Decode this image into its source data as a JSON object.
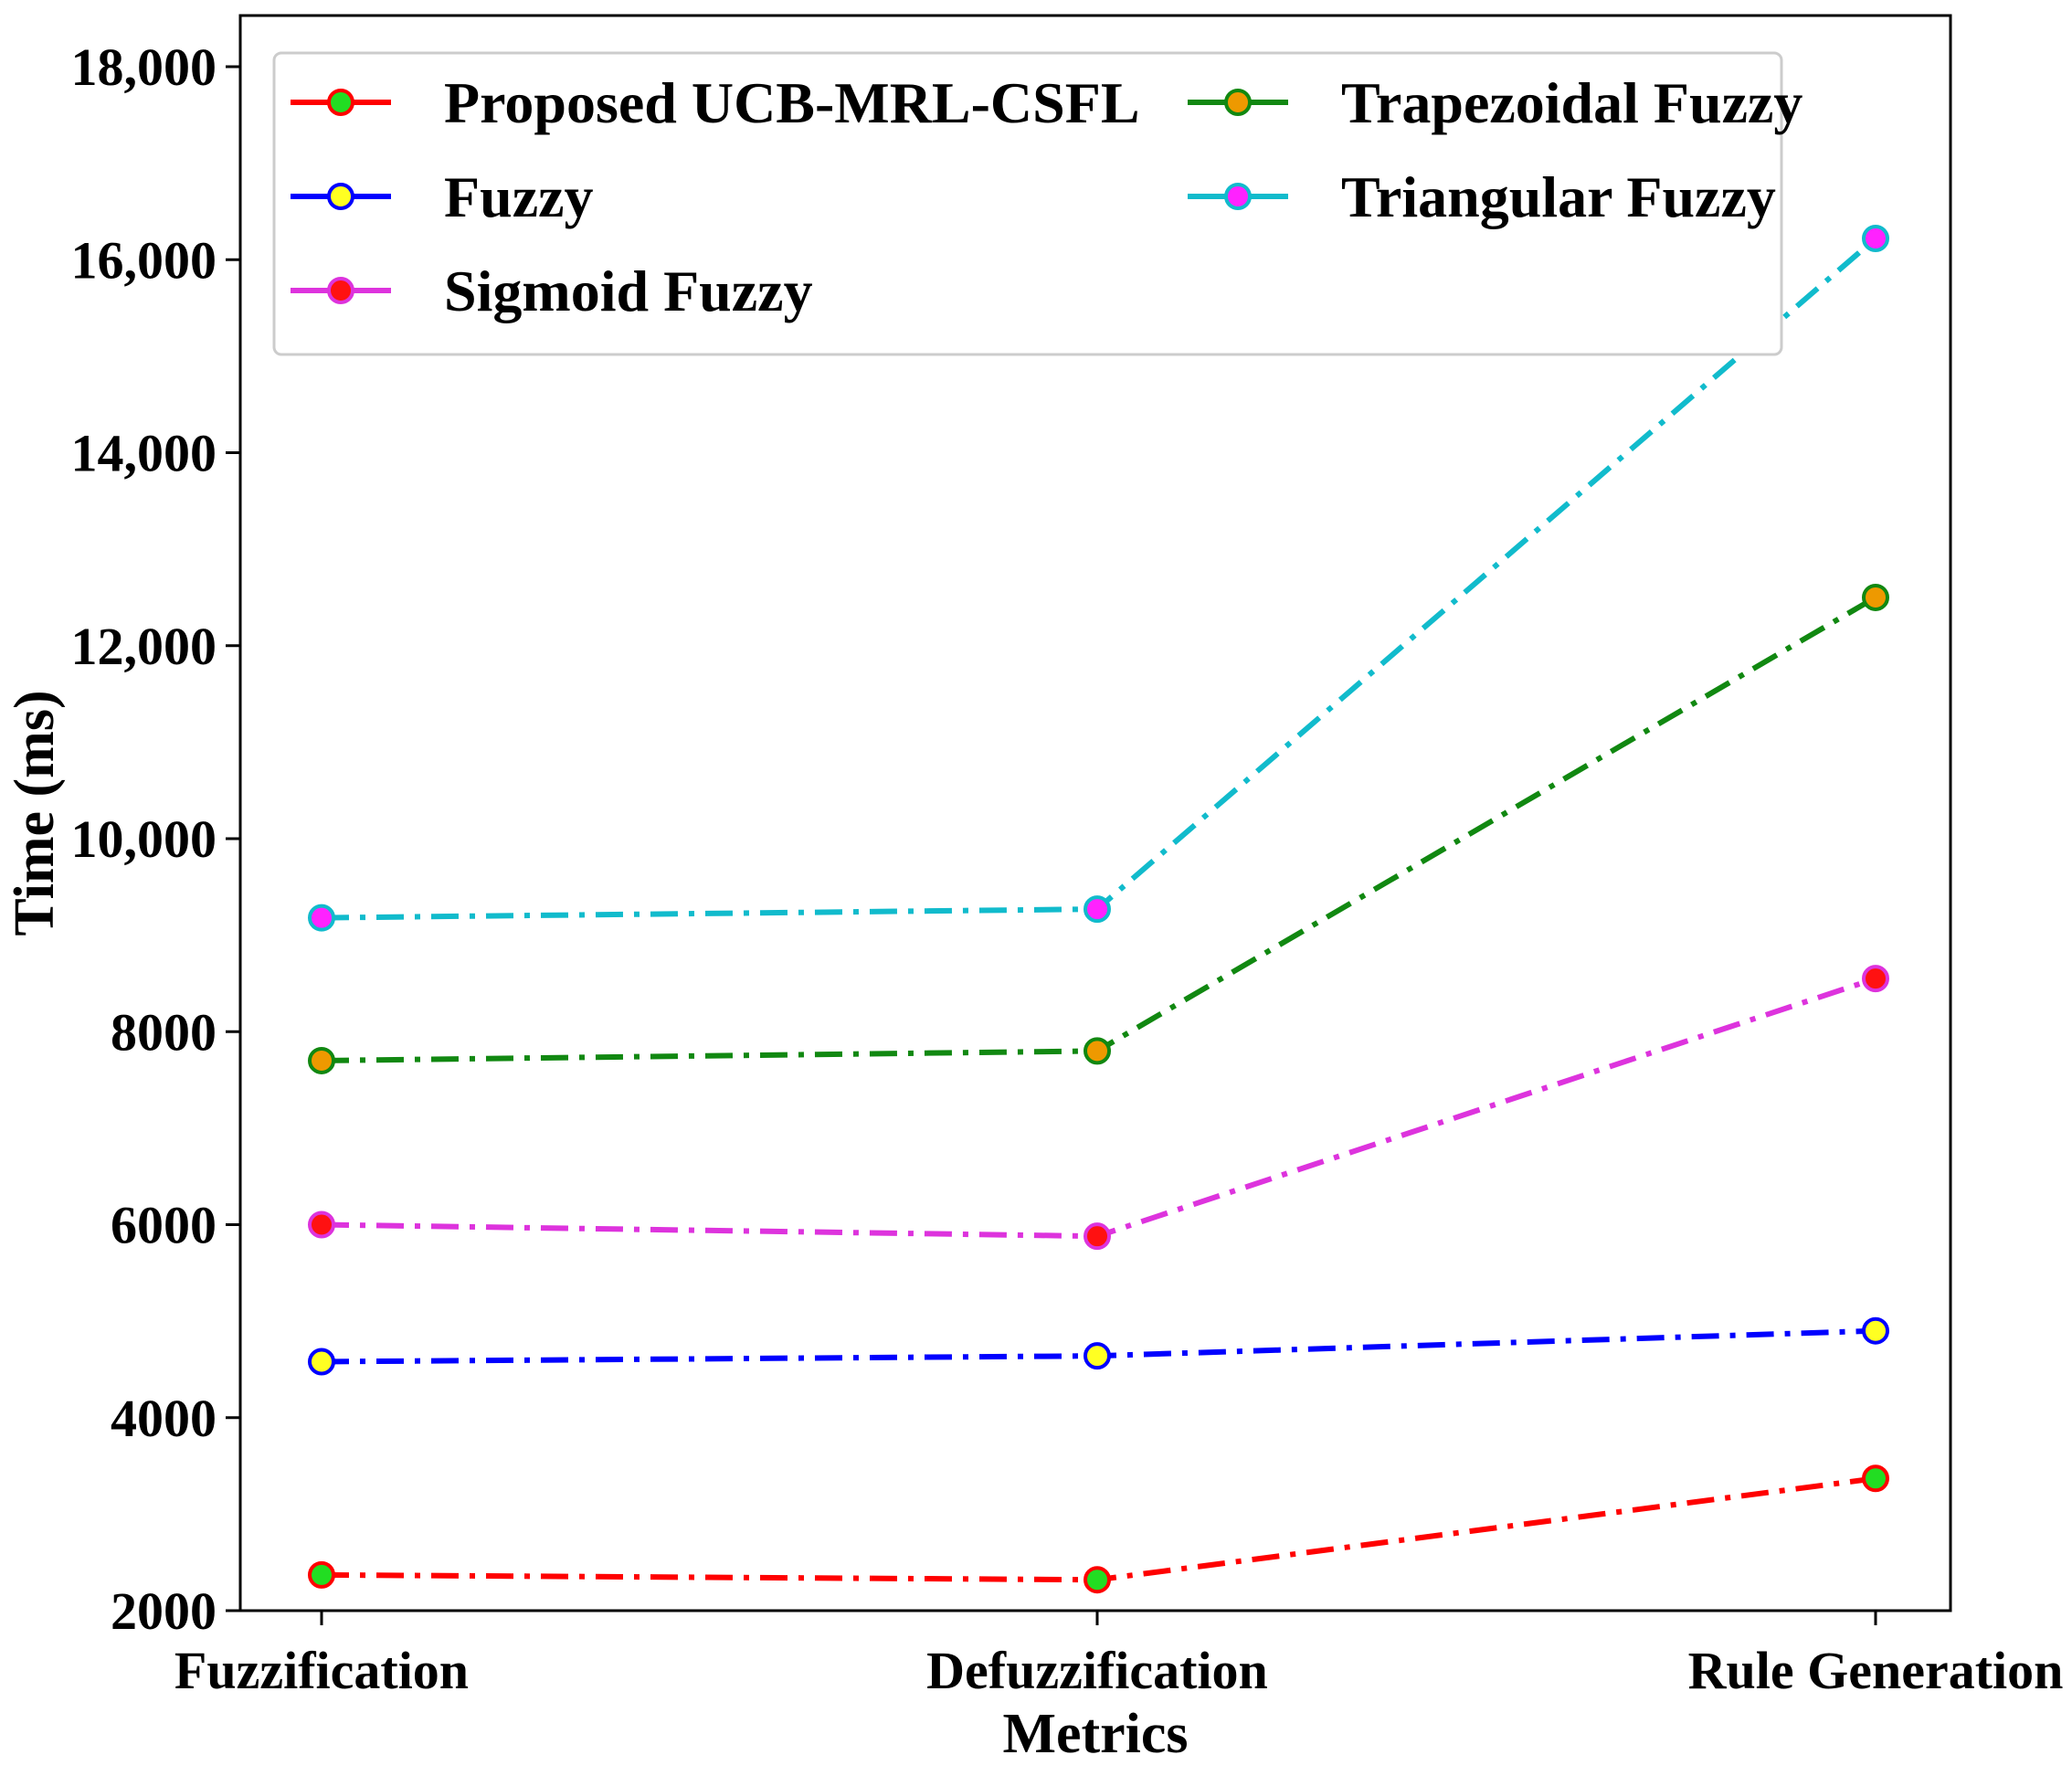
{
  "chart_data": {
    "type": "line",
    "title": "",
    "xlabel": "Metrics",
    "ylabel": "Time (ms)",
    "categories": [
      "Fuzzification",
      "Defuzzification",
      "Rule Generation"
    ],
    "ylim": [
      2000,
      18500
    ],
    "yticks": [
      2000,
      4000,
      6000,
      8000,
      10000,
      12000,
      14000,
      16000,
      18000
    ],
    "ytick_labels": [
      "2000",
      "4000",
      "6000",
      "8000",
      "10,000",
      "12,000",
      "14,000",
      "16,000",
      "18,000"
    ],
    "grid": false,
    "legend_position": "top",
    "series": [
      {
        "name": "Proposed UCB-MRL-CSFL",
        "values": [
          2370,
          2320,
          3370
        ],
        "line_color": "#ff0000",
        "marker_color": "#22dd22"
      },
      {
        "name": "Fuzzy",
        "values": [
          4580,
          4640,
          4900
        ],
        "line_color": "#0000ff",
        "marker_color": "#ffff22"
      },
      {
        "name": "Sigmoid Fuzzy",
        "values": [
          6000,
          5880,
          8550
        ],
        "line_color": "#dd33dd",
        "marker_color": "#ff1111"
      },
      {
        "name": "Trapezoidal Fuzzy",
        "values": [
          7700,
          7800,
          12500
        ],
        "line_color": "#118811",
        "marker_color": "#ee9900"
      },
      {
        "name": "Triangular Fuzzy",
        "values": [
          9180,
          9270,
          16220
        ],
        "line_color": "#11bbcc",
        "marker_color": "#ff22ff"
      }
    ]
  }
}
